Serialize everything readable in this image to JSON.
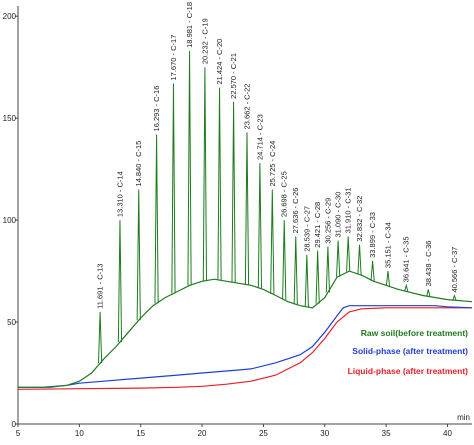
{
  "chart_data": {
    "type": "line",
    "title": "",
    "xlabel": "",
    "ylabel": "",
    "x_unit": "min",
    "xlim": [
      5,
      42
    ],
    "ylim": [
      0,
      205
    ],
    "x_ticks": [
      5,
      10,
      15,
      20,
      25,
      30,
      35,
      40
    ],
    "y_ticks": [
      0,
      50,
      100,
      150,
      200
    ],
    "grid": false,
    "legend_position": "bottom-right",
    "series": [
      {
        "name": "Raw soil(before treatment)",
        "color": "#1f7a1f",
        "x": [
          5,
          7.6,
          9,
          10,
          11,
          12,
          13,
          14,
          15,
          16,
          17,
          18,
          19,
          20,
          21,
          22,
          23,
          24,
          25,
          26,
          27,
          28,
          29,
          30,
          31,
          32,
          33,
          34,
          35,
          36,
          38,
          40,
          42
        ],
        "y": [
          18,
          18,
          19,
          21,
          25,
          32,
          38,
          45,
          52,
          58,
          62,
          65,
          68,
          70,
          71,
          70,
          69,
          68,
          66,
          63,
          60,
          58,
          57,
          62,
          72,
          75,
          73,
          70,
          68,
          66,
          63,
          61,
          60
        ]
      },
      {
        "name": "Solid-phase (after treatment)",
        "color": "#1f3fd4",
        "x": [
          5,
          7,
          9,
          10,
          12,
          14,
          16,
          18,
          20,
          22,
          24,
          26,
          28,
          29,
          30,
          31,
          31.5,
          32,
          33,
          35,
          37,
          38,
          39,
          40,
          42
        ],
        "y": [
          18,
          18,
          19,
          20,
          21,
          22,
          23,
          24,
          25,
          26,
          27,
          30,
          34,
          38,
          45,
          53,
          57,
          58,
          58,
          58,
          58,
          58,
          58,
          57.5,
          57
        ]
      },
      {
        "name": "Liquid-phase (after treatment)",
        "color": "#e8202a",
        "x": [
          5,
          10,
          15,
          18,
          20,
          22,
          24,
          26,
          28,
          29,
          30,
          31,
          32,
          33,
          35,
          38,
          40,
          42
        ],
        "y": [
          17,
          17.3,
          17.6,
          18,
          18.5,
          19.5,
          21,
          24,
          30,
          35,
          42,
          50,
          55,
          56.5,
          57,
          57,
          57,
          57
        ]
      }
    ],
    "peaks": [
      {
        "rt": 11.691,
        "compound": "C-13",
        "height": 55,
        "label": "11.691 - C-13"
      },
      {
        "rt": 13.31,
        "compound": "C-14",
        "height": 100,
        "label": "13.310 - C-14"
      },
      {
        "rt": 14.84,
        "compound": "C-15",
        "height": 115,
        "label": "14.840 - C-15"
      },
      {
        "rt": 16.293,
        "compound": "C-16",
        "height": 142,
        "label": "16.293 - C-16"
      },
      {
        "rt": 17.67,
        "compound": "C-17",
        "height": 167,
        "label": "17.670 - C-17"
      },
      {
        "rt": 18.981,
        "compound": "C-18",
        "height": 183,
        "label": "18.981 - C-18"
      },
      {
        "rt": 20.232,
        "compound": "C-19",
        "height": 175,
        "label": "20.232 - C-19"
      },
      {
        "rt": 21.424,
        "compound": "C-20",
        "height": 165,
        "label": "21.424 - C-20"
      },
      {
        "rt": 22.57,
        "compound": "C-21",
        "height": 158,
        "label": "22.570 - C-21"
      },
      {
        "rt": 23.662,
        "compound": "C-22",
        "height": 143,
        "label": "23.662 - C-22"
      },
      {
        "rt": 24.714,
        "compound": "C-23",
        "height": 128,
        "label": "24.714 - C-23"
      },
      {
        "rt": 25.725,
        "compound": "C-24",
        "height": 115,
        "label": "25.725 - C-24"
      },
      {
        "rt": 26.698,
        "compound": "C-25",
        "height": 100,
        "label": "26.698 - C-25"
      },
      {
        "rt": 27.636,
        "compound": "C-26",
        "height": 92,
        "label": "27.636 - C-26"
      },
      {
        "rt": 28.539,
        "compound": "C-27",
        "height": 83,
        "label": "28.539 - C-27"
      },
      {
        "rt": 29.421,
        "compound": "C-28",
        "height": 85,
        "label": "29.421 - C-28"
      },
      {
        "rt": 30.256,
        "compound": "C-29",
        "height": 87,
        "label": "30.256 - C-29"
      },
      {
        "rt": 31.09,
        "compound": "C-30",
        "height": 90,
        "label": "31.090 - C-30"
      },
      {
        "rt": 31.91,
        "compound": "C-31",
        "height": 92,
        "label": "31.910 - C-31"
      },
      {
        "rt": 32.832,
        "compound": "C-32",
        "height": 88,
        "label": "32.832 - C-32"
      },
      {
        "rt": 33.899,
        "compound": "C-33",
        "height": 80,
        "label": "33.899 - C-33"
      },
      {
        "rt": 35.151,
        "compound": "C-34",
        "height": 75,
        "label": "35.151 - C-34"
      },
      {
        "rt": 36.641,
        "compound": "C-35",
        "height": 68,
        "label": "36.641 - C-35"
      },
      {
        "rt": 38.438,
        "compound": "C-36",
        "height": 66,
        "label": "38.438 - C-36"
      },
      {
        "rt": 40.566,
        "compound": "C-37",
        "height": 63,
        "label": "40.566 - C-37"
      }
    ]
  }
}
